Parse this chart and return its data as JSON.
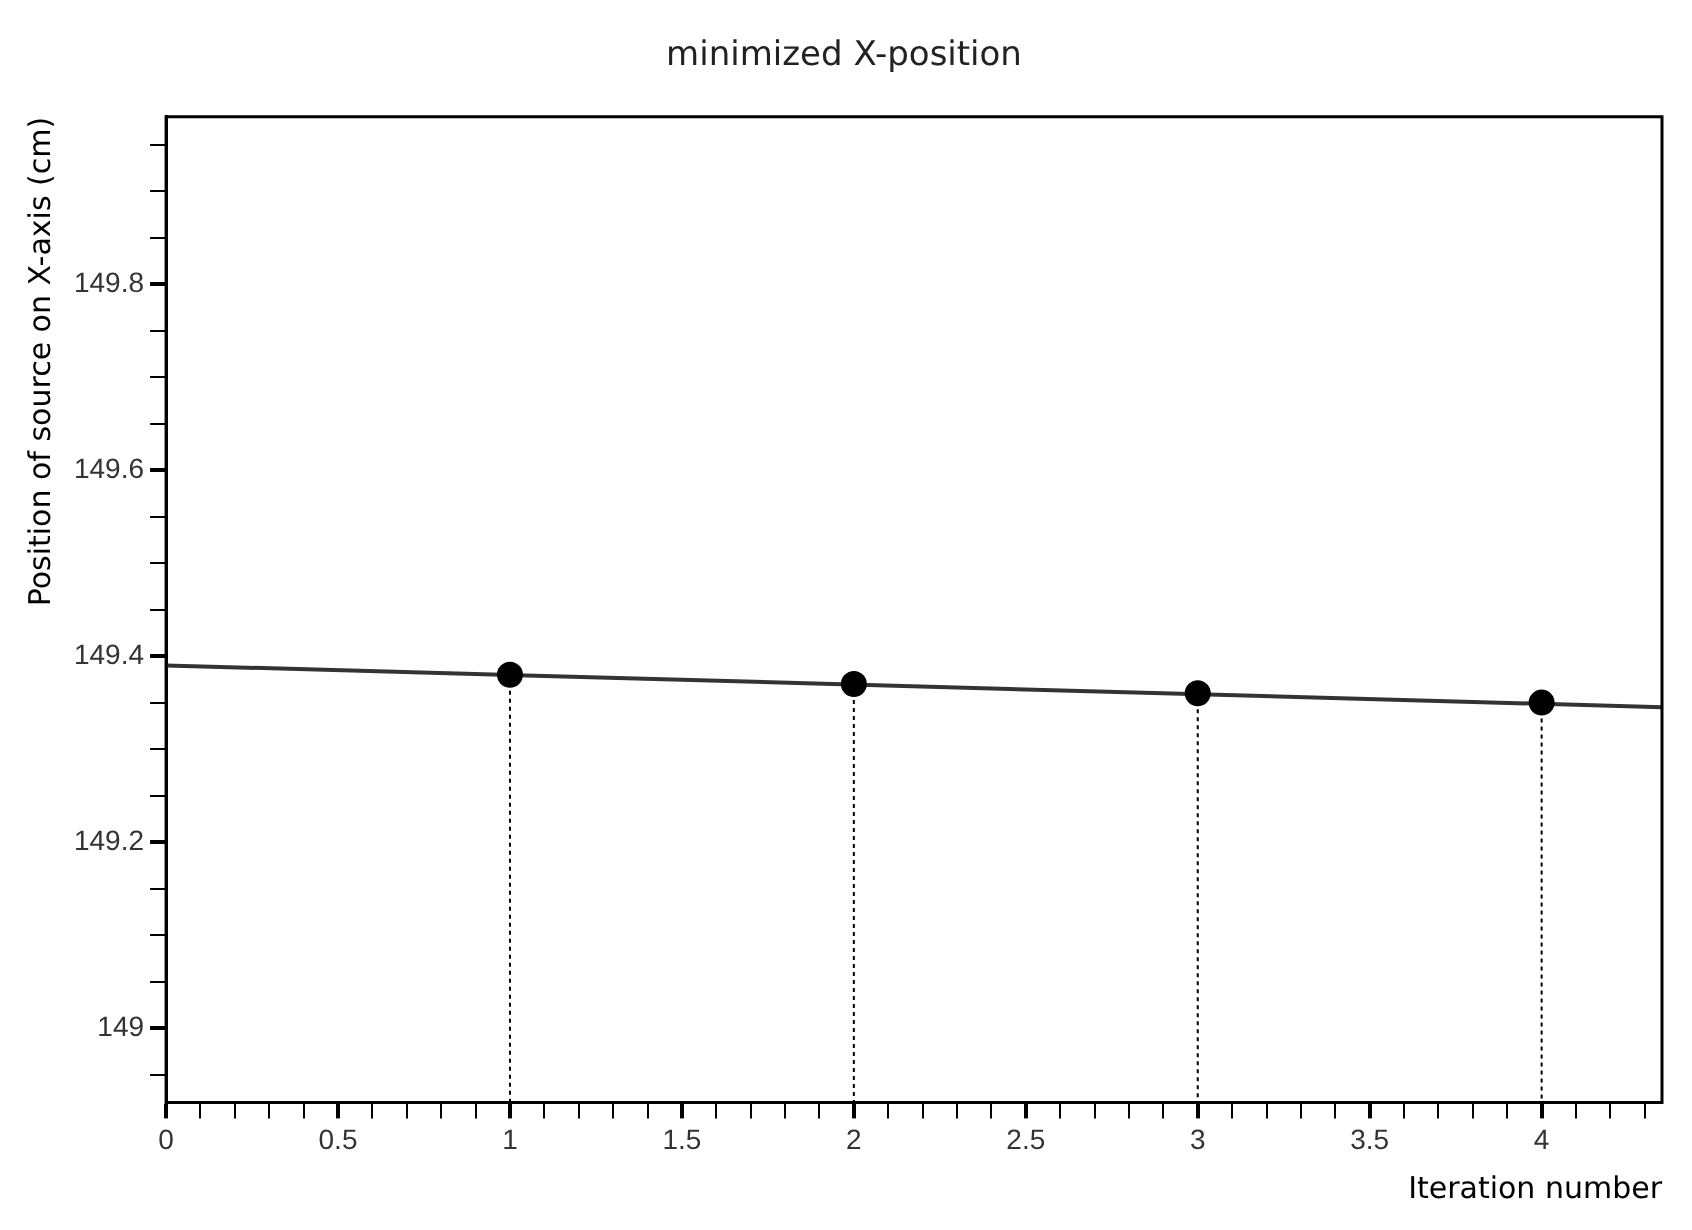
{
  "chart_data": {
    "type": "lollipop",
    "title": "minimized X-position",
    "xlabel": "Iteration number",
    "ylabel": "Position of source on X-axis (cm)",
    "xlim": [
      0,
      4.35
    ],
    "ylim": [
      148.92,
      149.98
    ],
    "xticks": [
      0,
      {
        "value": 0.1,
        "label": null
      },
      {
        "value": 0.2,
        "label": null
      },
      {
        "value": 0.3,
        "label": null
      },
      {
        "value": 0.4,
        "label": null
      },
      0.5,
      {
        "value": 0.6,
        "label": null
      },
      {
        "value": 0.7,
        "label": null
      },
      {
        "value": 0.8,
        "label": null
      },
      {
        "value": 0.9,
        "label": null
      },
      1,
      {
        "value": 1.1,
        "label": null
      },
      {
        "value": 1.2,
        "label": null
      },
      {
        "value": 1.3,
        "label": null
      },
      {
        "value": 1.4,
        "label": null
      },
      1.5,
      {
        "value": 1.6,
        "label": null
      },
      {
        "value": 1.7,
        "label": null
      },
      {
        "value": 1.8,
        "label": null
      },
      {
        "value": 1.9,
        "label": null
      },
      2,
      {
        "value": 2.1,
        "label": null
      },
      {
        "value": 2.2,
        "label": null
      },
      {
        "value": 2.3,
        "label": null
      },
      {
        "value": 2.4,
        "label": null
      },
      2.5,
      {
        "value": 2.6,
        "label": null
      },
      {
        "value": 2.7,
        "label": null
      },
      {
        "value": 2.8,
        "label": null
      },
      {
        "value": 2.9,
        "label": null
      },
      3,
      {
        "value": 3.1,
        "label": null
      },
      {
        "value": 3.2,
        "label": null
      },
      {
        "value": 3.3,
        "label": null
      },
      {
        "value": 3.4,
        "label": null
      },
      3.5,
      {
        "value": 3.6,
        "label": null
      },
      {
        "value": 3.7,
        "label": null
      },
      {
        "value": 3.8,
        "label": null
      },
      {
        "value": 3.9,
        "label": null
      },
      4,
      {
        "value": 4.1,
        "label": null
      },
      {
        "value": 4.2,
        "label": null
      },
      {
        "value": 4.3,
        "label": null
      }
    ],
    "yticks": [
      {
        "value": 148.95,
        "label": null
      },
      149,
      {
        "value": 149.05,
        "label": null
      },
      {
        "value": 149.1,
        "label": null
      },
      {
        "value": 149.15,
        "label": null
      },
      149.2,
      {
        "value": 149.25,
        "label": null
      },
      {
        "value": 149.3,
        "label": null
      },
      {
        "value": 149.35,
        "label": null
      },
      149.4,
      {
        "value": 149.45,
        "label": null
      },
      {
        "value": 149.5,
        "label": null
      },
      {
        "value": 149.55,
        "label": null
      },
      149.6,
      {
        "value": 149.65,
        "label": null
      },
      {
        "value": 149.7,
        "label": null
      },
      {
        "value": 149.75,
        "label": null
      },
      149.8,
      {
        "value": 149.85,
        "label": null
      },
      {
        "value": 149.9,
        "label": null
      },
      {
        "value": 149.95,
        "label": null
      }
    ],
    "grid": false,
    "legend": false,
    "marker": "circle",
    "series": [
      {
        "color": "#000000",
        "line_style": "dotted",
        "x": [
          1,
          2,
          3,
          4
        ],
        "values": [
          149.38,
          149.37,
          149.36,
          149.35
        ]
      },
      {
        "type": "line",
        "color": "#333333",
        "x": [
          0,
          4.35
        ],
        "values": [
          149.39,
          149.345
        ],
        "marker": "none"
      }
    ]
  }
}
